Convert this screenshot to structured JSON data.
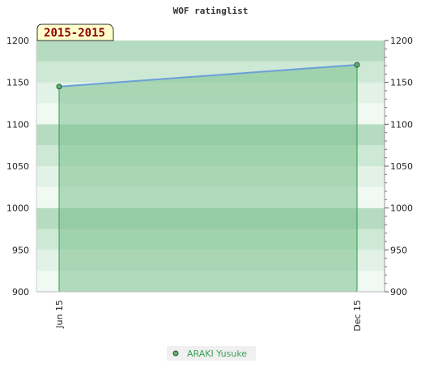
{
  "chart_data": {
    "type": "area",
    "title": "WOF ratinglist",
    "period_badge": "2015-2015",
    "x": [
      "Jun 15",
      "Dec 15"
    ],
    "series": [
      {
        "name": "ARAKI Yusuke",
        "values": [
          1145,
          1171
        ]
      }
    ],
    "ylim": [
      900,
      1200
    ],
    "yticks": [
      900,
      950,
      1000,
      1050,
      1100,
      1150,
      1200
    ],
    "ytick_labels": [
      "900",
      "950",
      "1000",
      "1050",
      "1100",
      "1150",
      "1200"
    ],
    "y_axis_sides": "both",
    "grid": "horizontal alternating bands",
    "legend_position": "bottom-center",
    "colors": {
      "line": "#6a9fd8",
      "fill": "#7cc08e",
      "marker_fill": "#5fb070",
      "marker_stroke": "#1f5a2e",
      "drop_line": "#2e9a4c",
      "band_dark": "#b5dcc0",
      "band_mid": "#cde8d5",
      "band_light": "#e2f2e6",
      "band_lightest": "#f1f9f3",
      "badge_bg": "#ffffcc",
      "badge_text": "#8b0000",
      "legend_bg": "#f0f0f0",
      "legend_text": "#3aa05a"
    }
  }
}
